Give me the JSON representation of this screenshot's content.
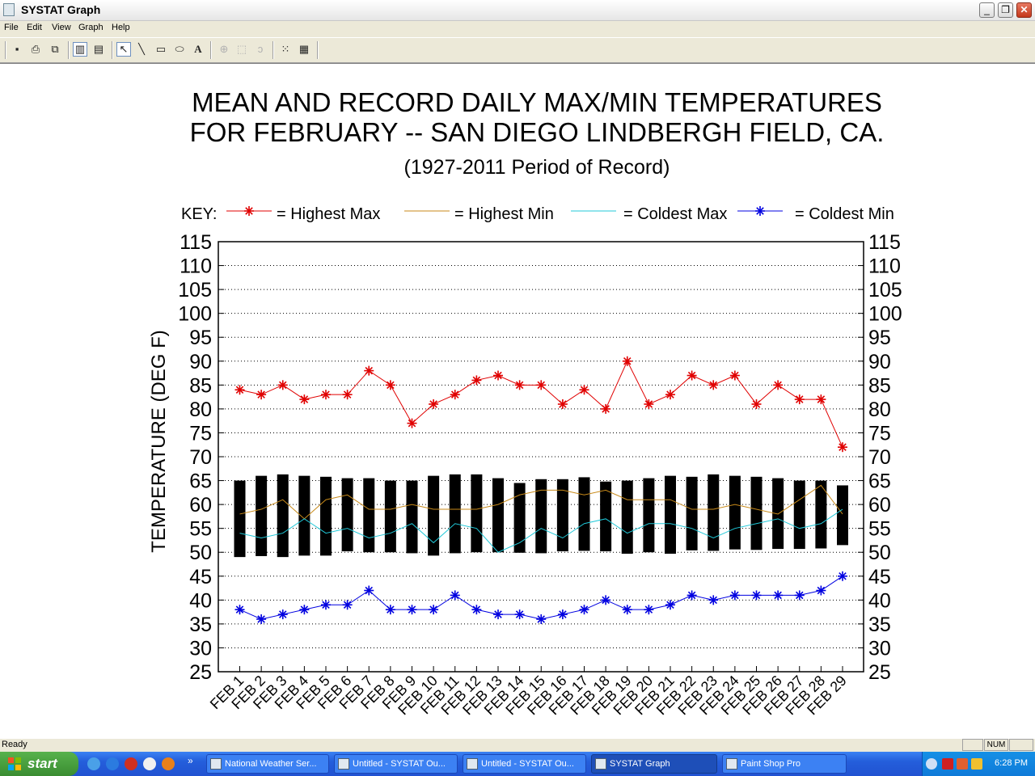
{
  "window": {
    "title": "SYSTAT Graph",
    "controls": {
      "minimize": "_",
      "restore": "❐",
      "close": "✕"
    }
  },
  "menu": [
    "File",
    "Edit",
    "View",
    "Graph",
    "Help"
  ],
  "toolbar_icons": [
    "save-icon",
    "print-icon",
    "copy-icon",
    "bar-chart-icon",
    "graph-data-icon",
    "pointer-icon",
    "line-tool-icon",
    "rectangle-tool-icon",
    "ellipse-tool-icon",
    "text-tool-icon",
    "crosshair-icon",
    "select-rect-icon",
    "lasso-icon",
    "scatter-matrix-icon",
    "table-icon"
  ],
  "chart_data": {
    "type": "line",
    "title_line1": "MEAN AND RECORD DAILY MAX/MIN TEMPERATURES",
    "title_line2": "FOR FEBRUARY -- SAN DIEGO LINDBERGH FIELD, CA.",
    "subtitle": "(1927-2011 Period of Record)",
    "ylabel": "TEMPERATURE (DEG F)",
    "ylim": [
      25,
      115
    ],
    "yticks": [
      25,
      30,
      35,
      40,
      45,
      50,
      55,
      60,
      65,
      70,
      75,
      80,
      85,
      90,
      95,
      100,
      105,
      110,
      115
    ],
    "grid": true,
    "legend_placement": "top",
    "legend_prefix": "KEY:",
    "categories": [
      "FEB 1",
      "FEB 2",
      "FEB 3",
      "FEB 4",
      "FEB 5",
      "FEB 6",
      "FEB 7",
      "FEB 8",
      "FEB 9",
      "FEB 10",
      "FEB 11",
      "FEB 12",
      "FEB 13",
      "FEB 14",
      "FEB 15",
      "FEB 16",
      "FEB 17",
      "FEB 18",
      "FEB 19",
      "FEB 20",
      "FEB 21",
      "FEB 22",
      "FEB 23",
      "FEB 24",
      "FEB 25",
      "FEB 26",
      "FEB 27",
      "FEB 28",
      "FEB 29"
    ],
    "mean_range_bars": {
      "high": [
        65,
        66,
        66.3,
        66,
        65.8,
        65.5,
        65.5,
        65,
        65,
        66,
        66.3,
        66.3,
        65.5,
        64.5,
        65.3,
        65.3,
        65.7,
        64.8,
        65,
        65.5,
        66,
        65.8,
        66.3,
        66,
        65.8,
        65.5,
        65,
        65,
        64
      ],
      "low": [
        49,
        49.2,
        49,
        49.3,
        49.3,
        50.2,
        50,
        50,
        49.8,
        49.3,
        49.8,
        50,
        50,
        49.9,
        49.8,
        50.2,
        50.3,
        50.2,
        49.7,
        50,
        49.7,
        50.4,
        50.3,
        50.6,
        50.5,
        50.7,
        50.7,
        50.8,
        51.5
      ]
    },
    "series": [
      {
        "name": "Highest Max",
        "legend_text": "= Highest Max",
        "color": "#e00000",
        "marker": "star",
        "values": [
          84,
          83,
          85,
          82,
          83,
          83,
          88,
          85,
          77,
          81,
          83,
          86,
          87,
          85,
          85,
          81,
          84,
          80,
          90,
          81,
          83,
          87,
          85,
          87,
          81,
          85,
          82,
          82,
          72
        ]
      },
      {
        "name": "Highest Min",
        "legend_text": "= Highest Min",
        "color": "#c88a1a",
        "marker": "none",
        "values": [
          58,
          59,
          61,
          57,
          61,
          62,
          59,
          59,
          60,
          59,
          59,
          59,
          60,
          62,
          63,
          63,
          62,
          63,
          61,
          61,
          61,
          59,
          59,
          60,
          59,
          58,
          61,
          64,
          58
        ]
      },
      {
        "name": "Coldest Max",
        "legend_text": "= Coldest Max",
        "color": "#20c8d8",
        "marker": "none",
        "values": [
          54,
          53,
          54,
          57,
          54,
          55,
          53,
          54,
          56,
          52,
          56,
          55,
          50,
          52,
          55,
          53,
          56,
          57,
          54,
          56,
          56,
          55,
          53,
          55,
          56,
          57,
          55,
          56,
          59
        ]
      },
      {
        "name": "Coldest Min",
        "legend_text": "= Coldest Min",
        "color": "#0000e0",
        "marker": "star",
        "values": [
          38,
          36,
          37,
          38,
          39,
          39,
          42,
          38,
          38,
          38,
          41,
          38,
          37,
          37,
          36,
          37,
          38,
          40,
          38,
          38,
          39,
          41,
          40,
          41,
          41,
          41,
          41,
          42,
          45
        ]
      }
    ]
  },
  "status": {
    "text": "Ready",
    "num": "NUM"
  },
  "taskbar": {
    "start": "start",
    "tasks": [
      "National Weather Ser...",
      "Untitled - SYSTAT Ou...",
      "Untitled - SYSTAT Ou...",
      "SYSTAT Graph",
      "Paint Shop Pro"
    ],
    "overflow": "»",
    "clock": "6:28 PM"
  }
}
